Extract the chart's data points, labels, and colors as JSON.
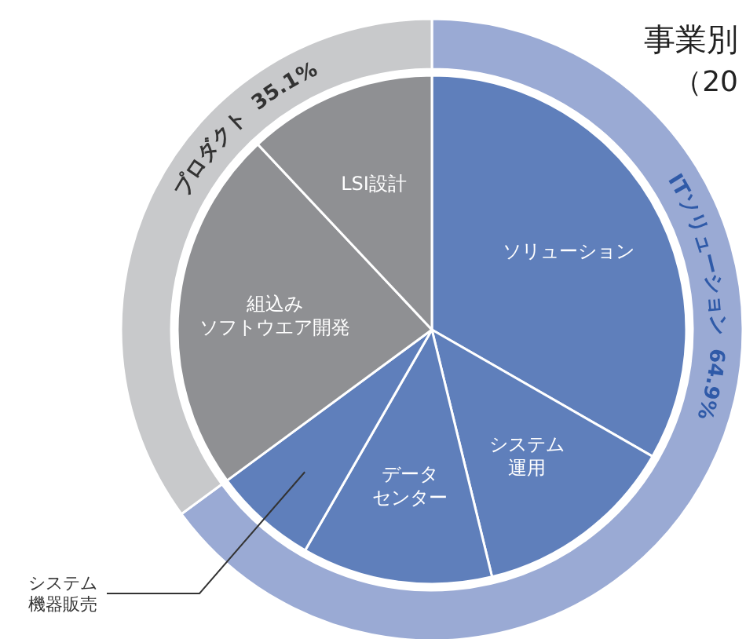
{
  "chart_data": [
    {
      "type": "pie",
      "categories": [
        "ソリューション",
        "システム運用",
        "データセンター",
        "システム機器販売",
        "組込みソフトウエア開発",
        "LSI設計"
      ],
      "values": [
        33.3,
        12.9,
        12.1,
        6.6,
        23.1,
        12.0
      ],
      "colors": [
        "#5f7fbb",
        "#5f7fbb",
        "#5f7fbb",
        "#5f7fbb",
        "#8f9093",
        "#8f9093"
      ]
    },
    {
      "type": "donut",
      "title": "事業別",
      "subtitle": "（20",
      "categories": [
        "ITソリューション",
        "プロダクト"
      ],
      "values": [
        64.9,
        35.1
      ],
      "value_labels": [
        "64.9%",
        "35.1%"
      ],
      "colors": [
        "#9aaad4",
        "#c8c9cb"
      ]
    }
  ]
}
